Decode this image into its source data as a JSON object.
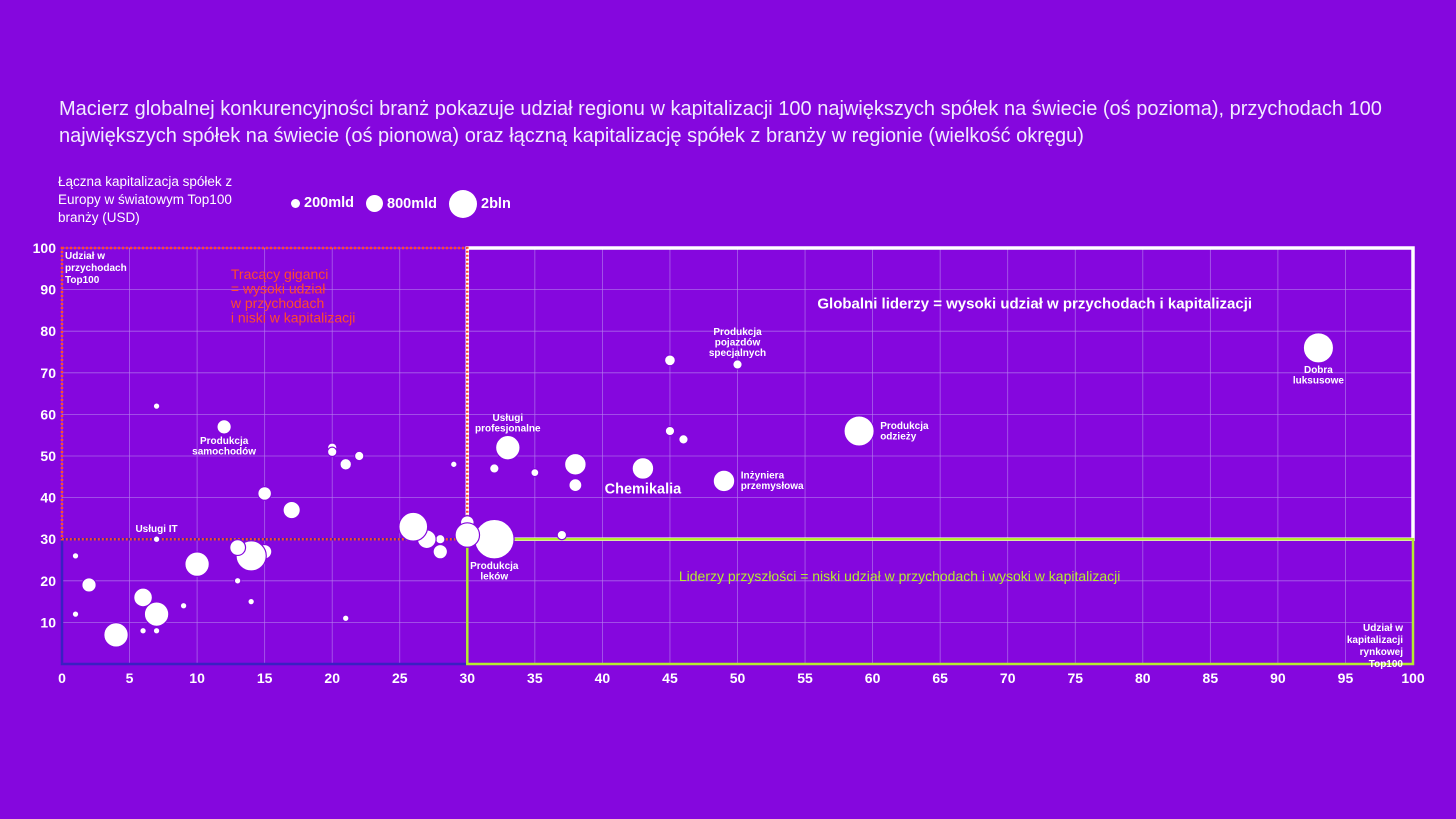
{
  "title": "Macierz globalnej konkurencyjności branż pokazuje udział regionu w kapitalizacji 100 największych spółek na świecie (oś pozioma), przychodach 100 największych spółek na świecie (oś pionowa) oraz łączną kapitalizację spółek z branży w regionie (wielkość okręgu)",
  "legend": {
    "title": "Łączna kapitalizacja spółek z Europy w światowym Top100 branży (USD)",
    "items": [
      "200mld",
      "800mld",
      "2bln"
    ]
  },
  "colors": {
    "background": "#8507DE",
    "bubble": "#ffffff",
    "grid": "#b782ee",
    "quadrant_red": "#ff4a2e",
    "quadrant_green": "#b5ec2f",
    "quadrant_blue": "#3a1fc2",
    "quadrant_white": "#ffffff"
  },
  "chart_data": {
    "type": "scatter",
    "bubble": true,
    "xlim": [
      0,
      100
    ],
    "ylim": [
      0,
      100
    ],
    "xticks": [
      "0",
      "5",
      "10",
      "15",
      "20",
      "25",
      "30",
      "35",
      "40",
      "45",
      "50",
      "55",
      "60",
      "65",
      "70",
      "75",
      "80",
      "85",
      "90",
      "95",
      "100"
    ],
    "yticks": [
      "10",
      "20",
      "30",
      "40",
      "50",
      "60",
      "70",
      "80",
      "90",
      "100"
    ],
    "xlabel": "Udział w kapitalizacji rynkowej Top100",
    "ylabel": "Udział w przychodach Top100",
    "grid": true,
    "quadrants": [
      {
        "name": "Tracący giganci = wysoki udział w przychodach i niski w kapitalizacji",
        "x": [
          0,
          30
        ],
        "y": [
          30,
          100
        ],
        "color": "red"
      },
      {
        "name": "Globalni liderzy = wysoki udział w przychodach i kapitalizacji",
        "x": [
          30,
          100
        ],
        "y": [
          30,
          100
        ],
        "color": "white"
      },
      {
        "name": "Liderzy przyszłości = niski udział w przychodach i wysoki w kapitalizacji",
        "x": [
          30,
          100
        ],
        "y": [
          0,
          30
        ],
        "color": "green"
      },
      {
        "name": "",
        "x": [
          0,
          30
        ],
        "y": [
          0,
          30
        ],
        "color": "blue"
      }
    ],
    "quadrant_labels": {
      "red": [
        "Tracący giganci",
        "= wysoki udział",
        "w przychodach",
        "i niski w kapitalizacji"
      ],
      "white": "Globalni liderzy = wysoki udział w przychodach i kapitalizacji",
      "green": "Liderzy przyszłości = niski udział w przychodach i wysoki w kapitalizacji"
    },
    "points": [
      {
        "x": 93,
        "y": 76,
        "size": 4.2,
        "label": "Dobra\nluksusowe"
      },
      {
        "x": 59,
        "y": 56,
        "size": 4.2,
        "label": "Produkcja\nodzieży"
      },
      {
        "x": 50,
        "y": 72,
        "size": 1.3,
        "label": "Produkcja\npojazdów\nspecjalnych"
      },
      {
        "x": 45,
        "y": 73,
        "size": 1.5,
        "label": ""
      },
      {
        "x": 45,
        "y": 56,
        "size": 1.3,
        "label": ""
      },
      {
        "x": 46,
        "y": 54,
        "size": 1.3,
        "label": ""
      },
      {
        "x": 49,
        "y": 44,
        "size": 3.0,
        "label": "Inżyniera\nprzemysłowa"
      },
      {
        "x": 43,
        "y": 47,
        "size": 3.0,
        "label": "Chemikalia"
      },
      {
        "x": 38,
        "y": 48,
        "size": 3.0,
        "label": ""
      },
      {
        "x": 38,
        "y": 43,
        "size": 1.8,
        "label": ""
      },
      {
        "x": 35,
        "y": 46,
        "size": 1.1,
        "label": ""
      },
      {
        "x": 37,
        "y": 31,
        "size": 1.3,
        "label": ""
      },
      {
        "x": 33,
        "y": 52,
        "size": 3.4,
        "label": "Usługi\nprofesjonalne"
      },
      {
        "x": 32,
        "y": 47,
        "size": 1.3,
        "label": ""
      },
      {
        "x": 32,
        "y": 30,
        "size": 5.5,
        "label": "Produkcja\nleków"
      },
      {
        "x": 30,
        "y": 34,
        "size": 1.9,
        "label": ""
      },
      {
        "x": 30,
        "y": 31,
        "size": 3.4,
        "label": ""
      },
      {
        "x": 29,
        "y": 48,
        "size": 0.9,
        "label": ""
      },
      {
        "x": 28,
        "y": 30,
        "size": 1.3,
        "label": ""
      },
      {
        "x": 28,
        "y": 27,
        "size": 2.0,
        "label": ""
      },
      {
        "x": 27,
        "y": 30,
        "size": 2.6,
        "label": ""
      },
      {
        "x": 26,
        "y": 33,
        "size": 4.0,
        "label": ""
      },
      {
        "x": 22,
        "y": 50,
        "size": 1.3,
        "label": ""
      },
      {
        "x": 21,
        "y": 48,
        "size": 1.6,
        "label": ""
      },
      {
        "x": 20,
        "y": 52,
        "size": 1.3,
        "label": ""
      },
      {
        "x": 20,
        "y": 51,
        "size": 1.3,
        "label": ""
      },
      {
        "x": 21,
        "y": 11,
        "size": 0.9,
        "label": ""
      },
      {
        "x": 17,
        "y": 37,
        "size": 2.4,
        "label": ""
      },
      {
        "x": 15,
        "y": 41,
        "size": 1.9,
        "label": ""
      },
      {
        "x": 15,
        "y": 27,
        "size": 2.0,
        "label": ""
      },
      {
        "x": 14,
        "y": 26,
        "size": 4.2,
        "label": ""
      },
      {
        "x": 13,
        "y": 28,
        "size": 2.2,
        "label": ""
      },
      {
        "x": 13,
        "y": 20,
        "size": 0.9,
        "label": ""
      },
      {
        "x": 14,
        "y": 15,
        "size": 0.9,
        "label": ""
      },
      {
        "x": 12,
        "y": 57,
        "size": 2.0,
        "label": "Produkcja\nsamochodów"
      },
      {
        "x": 10,
        "y": 24,
        "size": 3.4,
        "label": ""
      },
      {
        "x": 9,
        "y": 14,
        "size": 0.9,
        "label": ""
      },
      {
        "x": 7,
        "y": 62,
        "size": 0.9,
        "label": ""
      },
      {
        "x": 7,
        "y": 30,
        "size": 0.9,
        "label": "Usługi IT"
      },
      {
        "x": 7,
        "y": 14,
        "size": 1.3,
        "label": ""
      },
      {
        "x": 7,
        "y": 12,
        "size": 3.4,
        "label": ""
      },
      {
        "x": 7,
        "y": 8,
        "size": 0.9,
        "label": ""
      },
      {
        "x": 6,
        "y": 16,
        "size": 2.6,
        "label": ""
      },
      {
        "x": 6,
        "y": 8,
        "size": 0.9,
        "label": ""
      },
      {
        "x": 4,
        "y": 7,
        "size": 3.4,
        "label": ""
      },
      {
        "x": 2,
        "y": 19,
        "size": 2.0,
        "label": ""
      },
      {
        "x": 1,
        "y": 26,
        "size": 0.9,
        "label": ""
      },
      {
        "x": 1,
        "y": 12,
        "size": 0.9,
        "label": ""
      }
    ]
  }
}
